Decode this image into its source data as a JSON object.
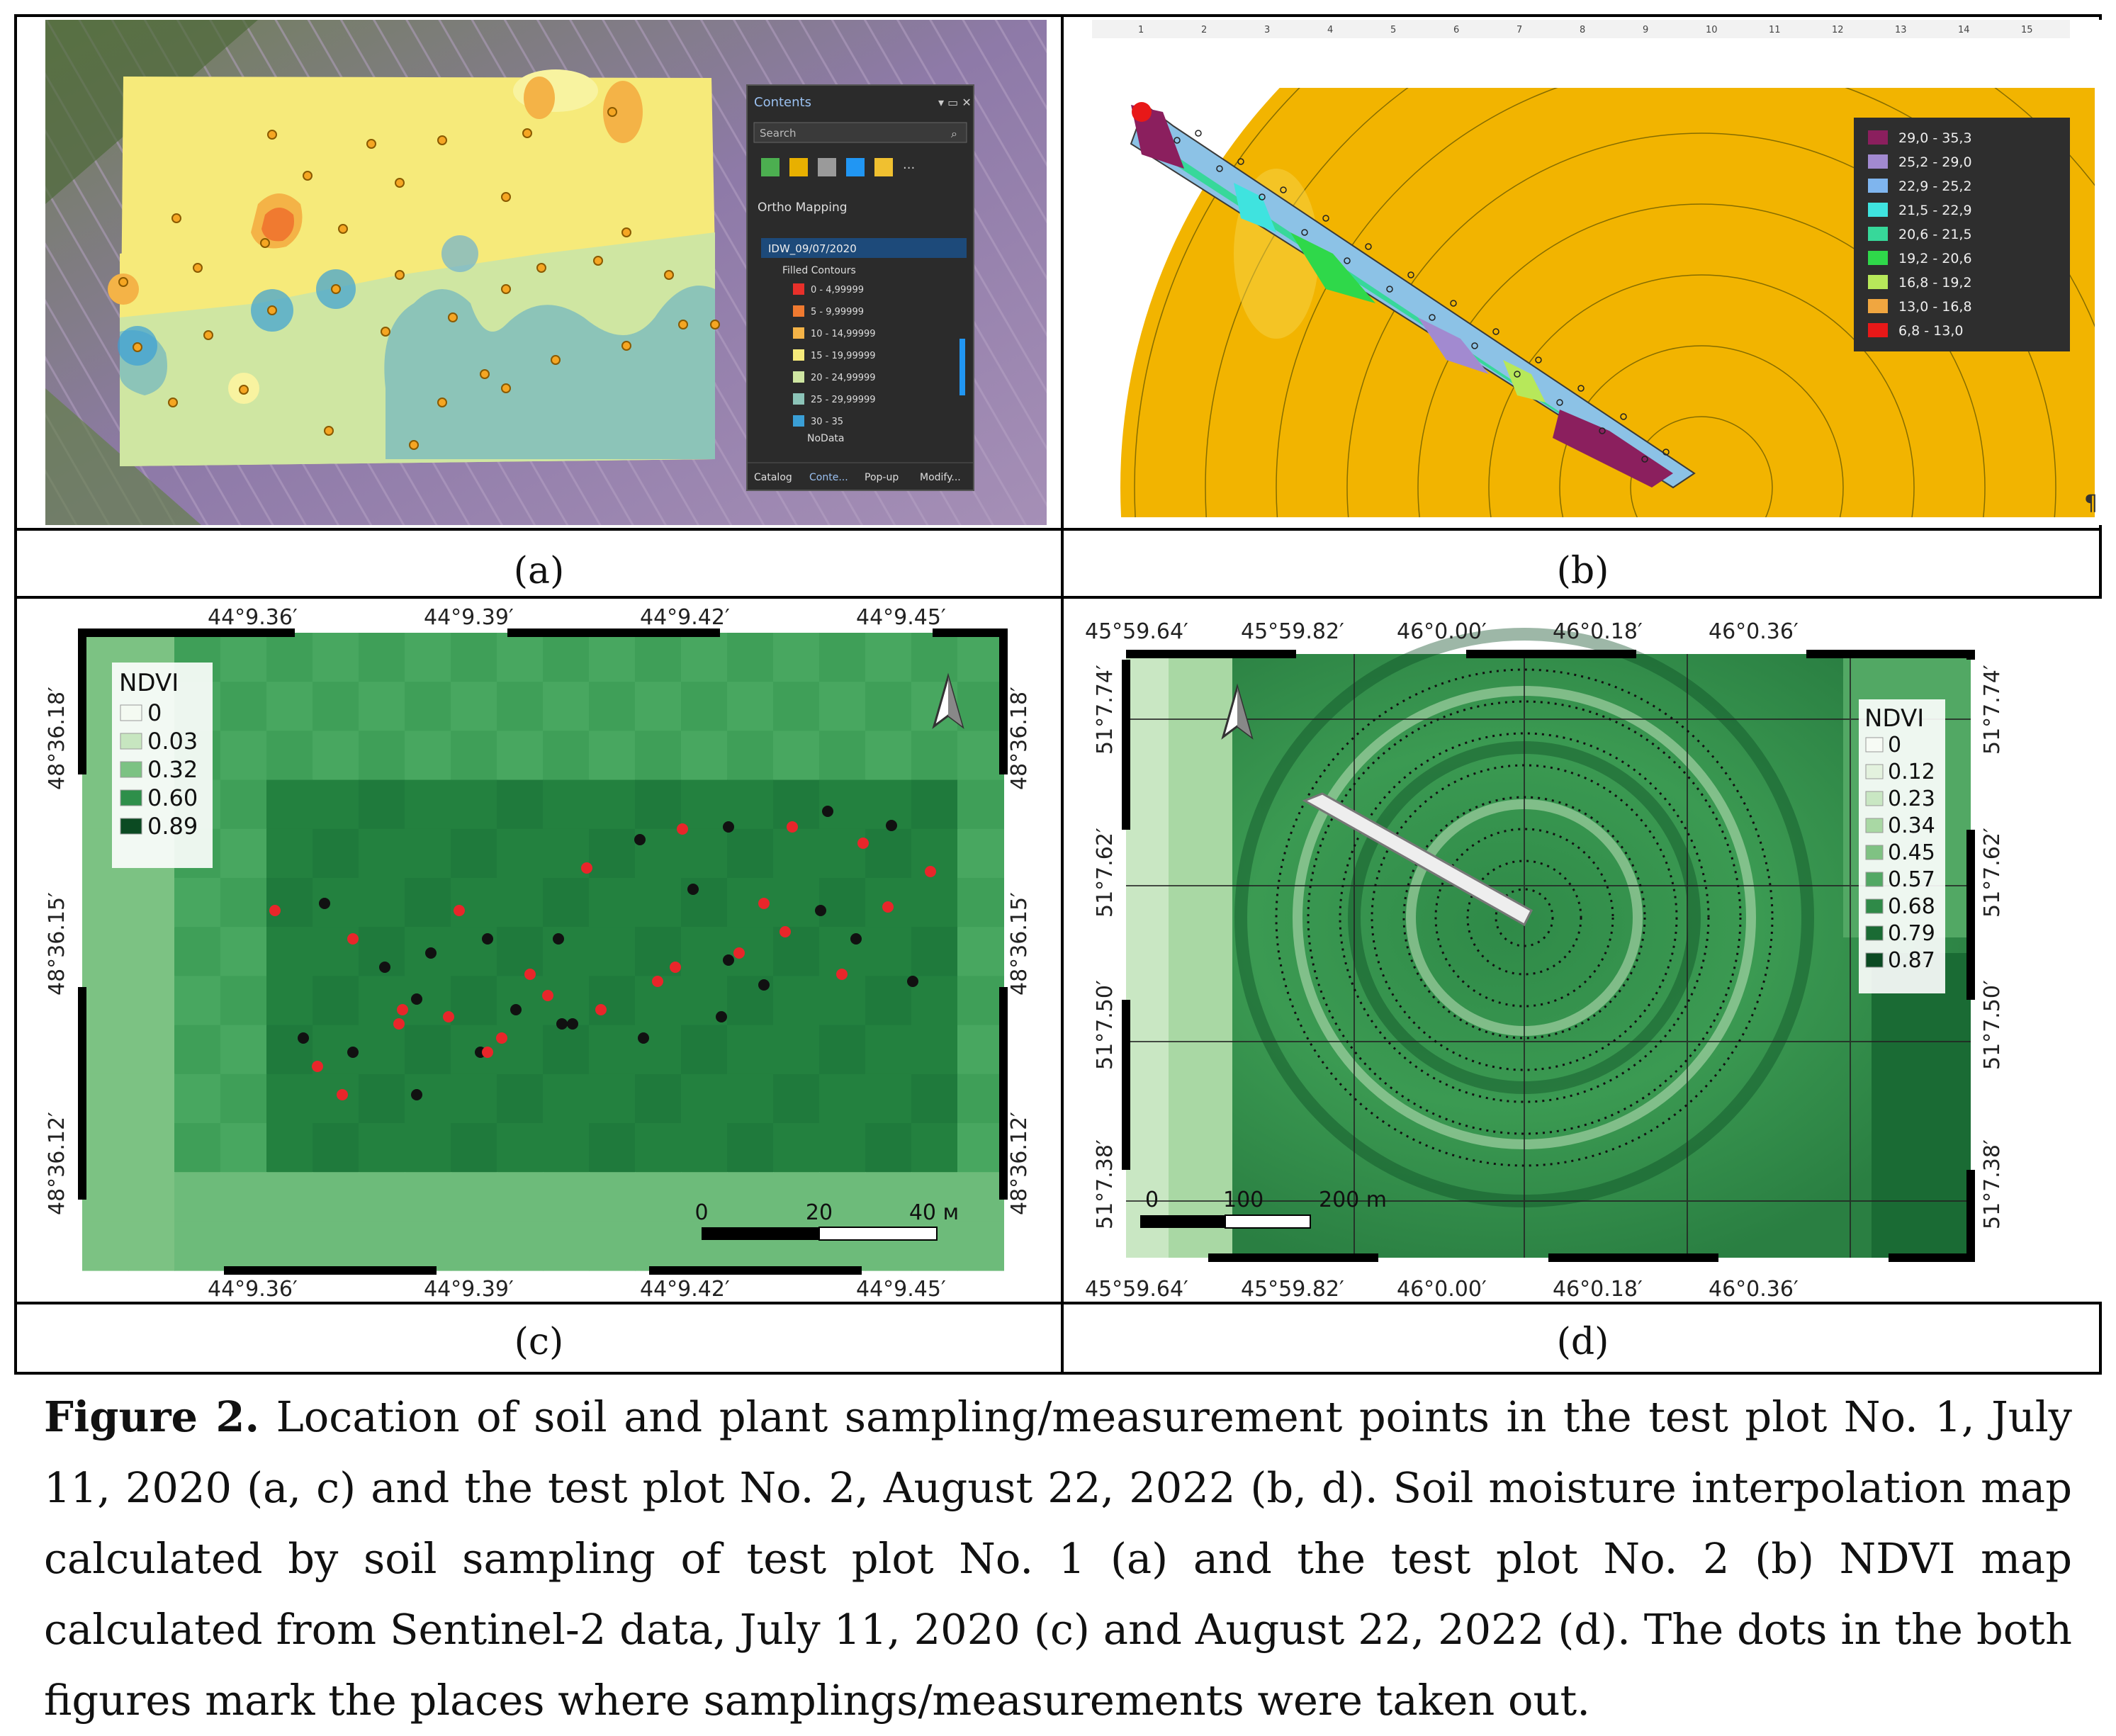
{
  "panels": {
    "a": {
      "label": "(a)",
      "contents_panel": {
        "title": "Contents",
        "search_placeholder": "Search",
        "group": "Ortho Mapping",
        "layer": "IDW_09/07/2020",
        "sublayer": "Filled Contours",
        "legend": [
          {
            "label": "0 - 4,99999",
            "color": "#e8302a"
          },
          {
            "label": "5 - 9,99999",
            "color": "#f07a30"
          },
          {
            "label": "10 - 14,99999",
            "color": "#f4b347"
          },
          {
            "label": "15 - 19,99999",
            "color": "#f6ea7a"
          },
          {
            "label": "20 - 24,99999",
            "color": "#cfe6a2"
          },
          {
            "label": "25 - 29,99999",
            "color": "#8cc4b8"
          },
          {
            "label": "30 - 35",
            "color": "#3a9fd6"
          }
        ],
        "nodata": "NoData",
        "tabs": [
          "Catalog",
          "Conte...",
          "Pop-up",
          "Modify..."
        ]
      }
    },
    "b": {
      "label": "(b)",
      "ruler_numbers": [
        "1",
        "2",
        "3",
        "4",
        "5",
        "6",
        "7",
        "8",
        "9",
        "10",
        "11",
        "12",
        "13",
        "14",
        "15"
      ],
      "pilcrow": "¶",
      "legend": [
        {
          "label": "29,0 - 35,3",
          "color": "#8b1f5e"
        },
        {
          "label": "25,2 - 29,0",
          "color": "#a28ad0"
        },
        {
          "label": "22,9 - 25,2",
          "color": "#7fb5ee"
        },
        {
          "label": "21,5 - 22,9",
          "color": "#3fe3df"
        },
        {
          "label": "20,6 - 21,5",
          "color": "#37d89a"
        },
        {
          "label": "19,2 - 20,6",
          "color": "#2fd84a"
        },
        {
          "label": "16,8 - 19,2",
          "color": "#b7e85a"
        },
        {
          "label": "13,0 - 16,8",
          "color": "#f0a640"
        },
        {
          "label": "6,8 - 13,0",
          "color": "#e81818"
        }
      ]
    },
    "c": {
      "label": "(c)",
      "top_lon": [
        "44°9.36′",
        "44°9.39′",
        "44°9.42′",
        "44°9.45′"
      ],
      "bottom_lon": [
        "44°9.36′",
        "44°9.39′",
        "44°9.42′",
        "44°9.45′"
      ],
      "left_lat": [
        "48°36.18′",
        "48°36.15′",
        "48°36.12′"
      ],
      "right_lat": [
        "48°36.18′",
        "48°36.15′",
        "48°36.12′"
      ],
      "legend_title": "NDVI",
      "legend": [
        {
          "label": "0",
          "color": "#f4faf2"
        },
        {
          "label": "0.03",
          "color": "#c7e6c0"
        },
        {
          "label": "0.32",
          "color": "#7cc283"
        },
        {
          "label": "0.60",
          "color": "#2e8f4a"
        },
        {
          "label": "0.89",
          "color": "#0b4a22"
        }
      ],
      "scalebar": [
        "0",
        "20",
        "40 м"
      ]
    },
    "d": {
      "label": "(d)",
      "top_lon": [
        "45°59.64′",
        "45°59.82′",
        "46°0.00′",
        "46°0.18′",
        "46°0.36′"
      ],
      "bottom_lon": [
        "45°59.64′",
        "45°59.82′",
        "46°0.00′",
        "46°0.18′",
        "46°0.36′"
      ],
      "left_lat": [
        "51°7.74′",
        "51°7.62′",
        "51°7.50′",
        "51°7.38′"
      ],
      "right_lat": [
        "51°7.74′",
        "51°7.62′",
        "51°7.50′",
        "51°7.38′"
      ],
      "legend_title": "NDVI",
      "legend": [
        {
          "label": "0",
          "color": "#f7fbf5"
        },
        {
          "label": "0.12",
          "color": "#e3f2de"
        },
        {
          "label": "0.23",
          "color": "#c9e7c3"
        },
        {
          "label": "0.34",
          "color": "#a9d8a4"
        },
        {
          "label": "0.45",
          "color": "#7fc283"
        },
        {
          "label": "0.57",
          "color": "#52a864"
        },
        {
          "label": "0.68",
          "color": "#2f8a48"
        },
        {
          "label": "0.79",
          "color": "#1a6b34"
        },
        {
          "label": "0.87",
          "color": "#0b4a22"
        }
      ],
      "scalebar": [
        "0",
        "100",
        "200 m"
      ]
    }
  },
  "caption": {
    "label": "Figure 2.",
    "text": " Location of soil and plant sampling/measurement points in the test plot No. 1, July 11, 2020 (a, c) and the test plot No. 2, August 22, 2022 (b, d). Soil moisture interpolation map calculated by soil sampling of test plot No. 1 (a) and the test plot No. 2 (b) NDVI map calculated from Sentinel-2 data, July 11, 2020 (c) and August 22, 2022 (d). The dots in the both figures mark the places where samplings/measurements were taken out."
  }
}
